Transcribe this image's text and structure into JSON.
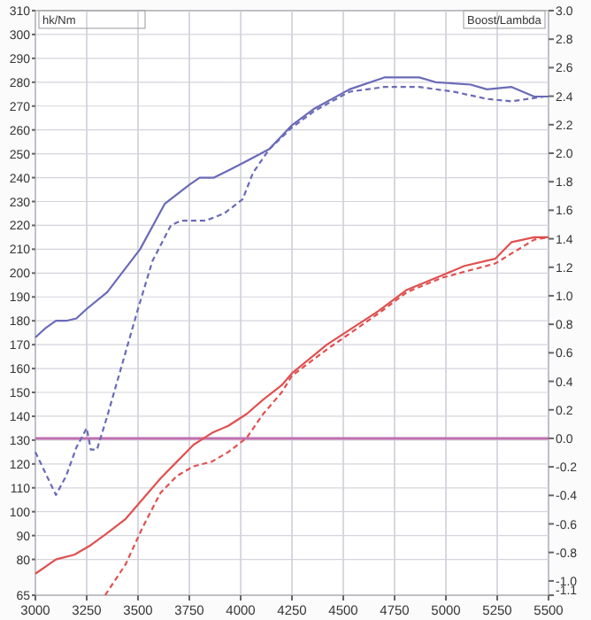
{
  "chart_data": {
    "type": "line",
    "xlim": [
      3000,
      5500
    ],
    "xticks": [
      3000,
      3250,
      3500,
      3750,
      4000,
      4250,
      4500,
      4750,
      5000,
      5250,
      5500
    ],
    "ylim": [
      65,
      310
    ],
    "yticks": [
      65,
      80,
      90,
      100,
      110,
      120,
      130,
      140,
      150,
      160,
      170,
      180,
      190,
      200,
      210,
      220,
      230,
      240,
      250,
      260,
      270,
      280,
      290,
      300,
      310
    ],
    "y2lim": [
      -1.1,
      3.0
    ],
    "y2ticks": [
      {
        "value": -1.1,
        "label": "-1.1"
      },
      {
        "value": -1.0,
        "label": "-1.0"
      },
      {
        "value": -0.8,
        "label": "-0.8"
      },
      {
        "value": -0.6,
        "label": "-0.6"
      },
      {
        "value": -0.4,
        "label": "-0.4"
      },
      {
        "value": -0.2,
        "label": "-0.2"
      },
      {
        "value": 0,
        "label": "0.0"
      },
      {
        "value": 0.2,
        "label": "0.2"
      },
      {
        "value": 0.4,
        "label": "0.4"
      },
      {
        "value": 0.6,
        "label": "0.6"
      },
      {
        "value": 0.8,
        "label": "0.8"
      },
      {
        "value": 1.0,
        "label": "1.0"
      },
      {
        "value": 1.2,
        "label": "1.2"
      },
      {
        "value": 1.4,
        "label": "1.4"
      },
      {
        "value": 1.6,
        "label": "1.6"
      },
      {
        "value": 1.8,
        "label": "1.8"
      },
      {
        "value": 2.0,
        "label": "2.0"
      },
      {
        "value": 2.2,
        "label": "2.2"
      },
      {
        "value": 2.4,
        "label": "2.4"
      },
      {
        "value": 2.6,
        "label": "2.6"
      },
      {
        "value": 2.8,
        "label": "2.8"
      },
      {
        "value": 3.0,
        "label": "3.0"
      }
    ],
    "grid": true,
    "marker": "none",
    "annotations": [
      "hk/Nm",
      "Boost/Lambda"
    ],
    "ref_lines": [
      {
        "axis": "y2",
        "value": 0,
        "color": "#c070b0"
      }
    ],
    "series": [
      {
        "color": "#6a6ab8",
        "line_style": "solid",
        "x": [
          3000,
          3050,
          3100,
          3150,
          3200,
          3250,
          3350,
          3510,
          3630,
          3750,
          3800,
          3870,
          3940,
          4030,
          4140,
          4250,
          4360,
          4530,
          4700,
          4870,
          4950,
          5120,
          5200,
          5320,
          5430,
          5500
        ],
        "values": [
          173,
          177,
          180,
          180,
          181,
          185,
          192,
          210,
          229,
          237,
          240,
          240,
          243,
          247,
          252,
          262,
          269,
          277,
          282,
          282,
          280,
          279,
          277,
          278,
          274,
          274
        ]
      },
      {
        "color": "#6a6ab8",
        "line_style": "dashed",
        "x": [
          3000,
          3050,
          3100,
          3150,
          3200,
          3250,
          3270,
          3300,
          3350,
          3400,
          3450,
          3500,
          3570,
          3660,
          3710,
          3830,
          3920,
          4010,
          4060,
          4140,
          4250,
          4360,
          4530,
          4700,
          4870,
          5040,
          5200,
          5320,
          5480
        ],
        "values": [
          125,
          116,
          107,
          115,
          127,
          135,
          126,
          126,
          140,
          155,
          170,
          185,
          205,
          220,
          222,
          222,
          225,
          231,
          242,
          252,
          261,
          268,
          276,
          278,
          278,
          276,
          273,
          272,
          274
        ]
      },
      {
        "color": "#e05050",
        "line_style": "solid",
        "x": [
          3000,
          3100,
          3190,
          3270,
          3350,
          3440,
          3520,
          3610,
          3690,
          3770,
          3860,
          3940,
          4030,
          4110,
          4200,
          4250,
          4420,
          4670,
          4810,
          4980,
          5090,
          5240,
          5320,
          5430,
          5500
        ],
        "values": [
          74,
          80,
          82,
          86,
          91,
          97,
          105,
          114,
          121,
          128,
          133,
          136,
          141,
          147,
          153,
          158,
          170,
          184,
          193,
          199,
          203,
          206,
          213,
          215,
          215
        ]
      },
      {
        "color": "#e05050",
        "line_style": "dashed",
        "x": [
          3340,
          3440,
          3520,
          3610,
          3690,
          3770,
          3860,
          3940,
          4030,
          4110,
          4200,
          4250,
          4420,
          4670,
          4810,
          4980,
          5240,
          5430,
          5500
        ],
        "values": [
          65,
          78,
          93,
          108,
          115,
          119,
          121,
          125,
          131,
          141,
          150,
          157,
          168,
          183,
          192,
          198,
          204,
          214,
          215
        ]
      }
    ]
  }
}
